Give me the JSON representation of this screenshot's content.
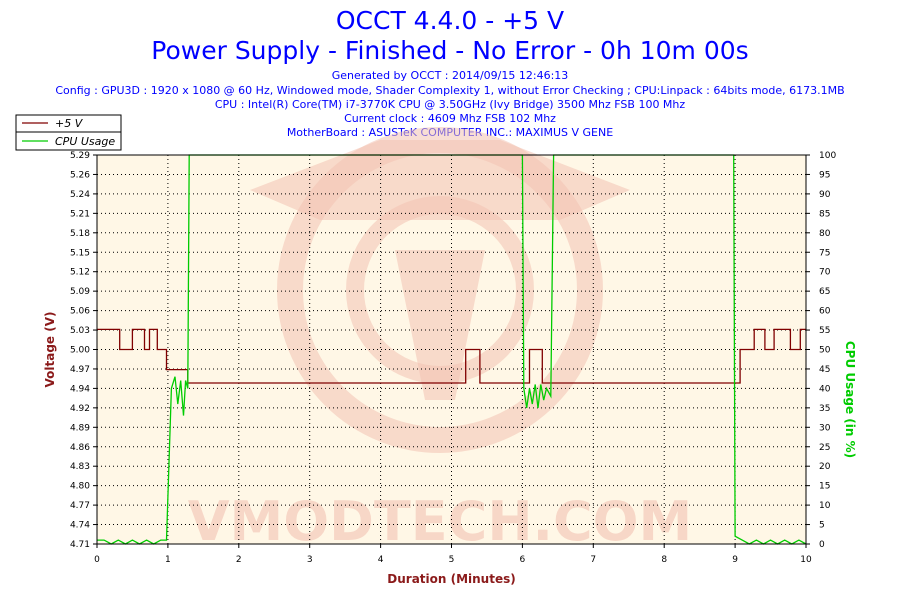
{
  "header": {
    "title": "OCCT 4.4.0 - +5 V",
    "subtitle": "Power Supply - Finished - No Error - 0h 10m 00s",
    "generated": "Generated by OCCT : 2014/09/15 12:46:13",
    "config": "Config : GPU3D : 1920 x 1080 @ 60 Hz, Windowed mode, Shader Complexity 1, without Error Checking ; CPU:Linpack : 64bits mode, 6173.1MB",
    "cpu": "CPU : Intel(R) Core(TM) i7-3770K CPU @ 3.50GHz (Ivy Bridge) 3500 Mhz FSB 100 Mhz",
    "clock": "Current clock : 4609 Mhz FSB 102 Mhz",
    "motherboard": "MotherBoard : ASUSTeK COMPUTER INC.: MAXIMUS V GENE"
  },
  "watermark": "VMODTECH.COM",
  "chart_data": {
    "type": "line",
    "xlabel": "Duration (Minutes)",
    "ylabel": "Voltage (V)",
    "y2label": "CPU Usage (in %)",
    "xlim": [
      0,
      10
    ],
    "ylim": [
      4.71,
      5.29
    ],
    "y2lim": [
      0,
      100
    ],
    "x_ticks": [
      "0",
      "1",
      "2",
      "3",
      "4",
      "5",
      "6",
      "7",
      "8",
      "9",
      "10"
    ],
    "y_ticks": [
      "4.71",
      "4.74",
      "4.77",
      "4.80",
      "4.83",
      "4.86",
      "4.89",
      "4.92",
      "4.94",
      "4.97",
      "5.00",
      "5.03",
      "5.06",
      "5.09",
      "5.12",
      "5.15",
      "5.18",
      "5.21",
      "5.24",
      "5.26",
      "5.29"
    ],
    "y2_ticks": [
      "0",
      "5",
      "10",
      "15",
      "20",
      "25",
      "30",
      "35",
      "40",
      "45",
      "50",
      "55",
      "60",
      "65",
      "70",
      "75",
      "80",
      "85",
      "90",
      "95",
      "100"
    ],
    "grid": true,
    "legend_position": "top-left",
    "colors": {
      "voltage": "#800000",
      "cpu": "#00cc00",
      "background": "#fff7e6",
      "text": "#0000ff",
      "axis_label": "#8b1a1a"
    },
    "series": [
      {
        "name": "+5 V",
        "axis": "left",
        "color": "#800000",
        "points": [
          [
            0.0,
            5.03
          ],
          [
            0.32,
            5.03
          ],
          [
            0.32,
            5.0
          ],
          [
            0.5,
            5.0
          ],
          [
            0.5,
            5.03
          ],
          [
            0.67,
            5.03
          ],
          [
            0.67,
            5.0
          ],
          [
            0.74,
            5.0
          ],
          [
            0.74,
            5.03
          ],
          [
            0.85,
            5.03
          ],
          [
            0.85,
            5.0
          ],
          [
            0.98,
            5.0
          ],
          [
            0.98,
            4.97
          ],
          [
            1.28,
            4.97
          ],
          [
            1.28,
            4.95
          ],
          [
            5.2,
            4.95
          ],
          [
            5.2,
            5.0
          ],
          [
            5.4,
            5.0
          ],
          [
            5.4,
            4.95
          ],
          [
            6.1,
            4.95
          ],
          [
            6.1,
            5.0
          ],
          [
            6.28,
            5.0
          ],
          [
            6.28,
            4.95
          ],
          [
            9.07,
            4.95
          ],
          [
            9.07,
            5.0
          ],
          [
            9.27,
            5.0
          ],
          [
            9.27,
            5.03
          ],
          [
            9.42,
            5.03
          ],
          [
            9.42,
            5.0
          ],
          [
            9.55,
            5.0
          ],
          [
            9.55,
            5.03
          ],
          [
            9.78,
            5.03
          ],
          [
            9.78,
            5.0
          ],
          [
            9.92,
            5.0
          ],
          [
            9.92,
            5.03
          ],
          [
            10.0,
            5.03
          ]
        ]
      },
      {
        "name": "CPU Usage",
        "axis": "right",
        "color": "#00cc00",
        "points": [
          [
            0.0,
            1
          ],
          [
            0.1,
            1
          ],
          [
            0.2,
            0
          ],
          [
            0.3,
            1
          ],
          [
            0.4,
            0
          ],
          [
            0.5,
            1
          ],
          [
            0.6,
            0
          ],
          [
            0.7,
            1
          ],
          [
            0.8,
            0
          ],
          [
            0.9,
            1
          ],
          [
            0.98,
            1
          ],
          [
            1.05,
            40
          ],
          [
            1.1,
            43
          ],
          [
            1.14,
            36
          ],
          [
            1.18,
            42
          ],
          [
            1.22,
            33
          ],
          [
            1.25,
            42
          ],
          [
            1.28,
            40
          ],
          [
            1.3,
            100
          ],
          [
            6.0,
            100
          ],
          [
            6.02,
            40
          ],
          [
            6.06,
            35
          ],
          [
            6.1,
            40
          ],
          [
            6.14,
            36
          ],
          [
            6.18,
            41
          ],
          [
            6.22,
            35
          ],
          [
            6.26,
            41
          ],
          [
            6.3,
            37
          ],
          [
            6.34,
            40
          ],
          [
            6.4,
            38
          ],
          [
            6.44,
            100
          ],
          [
            8.98,
            100
          ],
          [
            9.0,
            2
          ],
          [
            9.1,
            1
          ],
          [
            9.2,
            0
          ],
          [
            9.3,
            1
          ],
          [
            9.4,
            0
          ],
          [
            9.5,
            1
          ],
          [
            9.6,
            0
          ],
          [
            9.7,
            1
          ],
          [
            9.8,
            0
          ],
          [
            9.9,
            1
          ],
          [
            10.0,
            0
          ]
        ]
      }
    ]
  }
}
